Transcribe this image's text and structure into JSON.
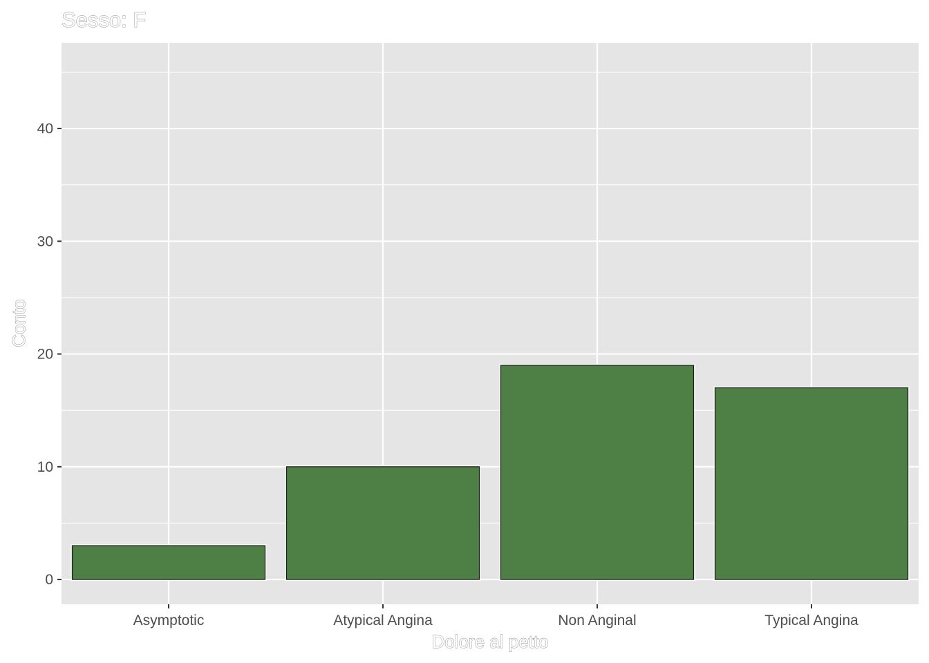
{
  "chart_data": {
    "type": "bar",
    "title": "Sesso: F",
    "xlabel": "Dolore al petto",
    "ylabel": "Conto",
    "categories": [
      "Asymptotic",
      "Atypical Angina",
      "Non Anginal",
      "Typical Angina"
    ],
    "values": [
      3,
      10,
      19,
      17
    ],
    "ylim": [
      -2.2,
      47.6
    ],
    "yticks": [
      0,
      10,
      20,
      30,
      40
    ],
    "ytick_labels": [
      "0",
      "10",
      "20",
      "30",
      "40"
    ],
    "grid": true,
    "legend": "none",
    "colors": {
      "bar_fill": "#4e7f44",
      "panel_background": "#e5e5e5",
      "grid": "#ffffff"
    }
  }
}
